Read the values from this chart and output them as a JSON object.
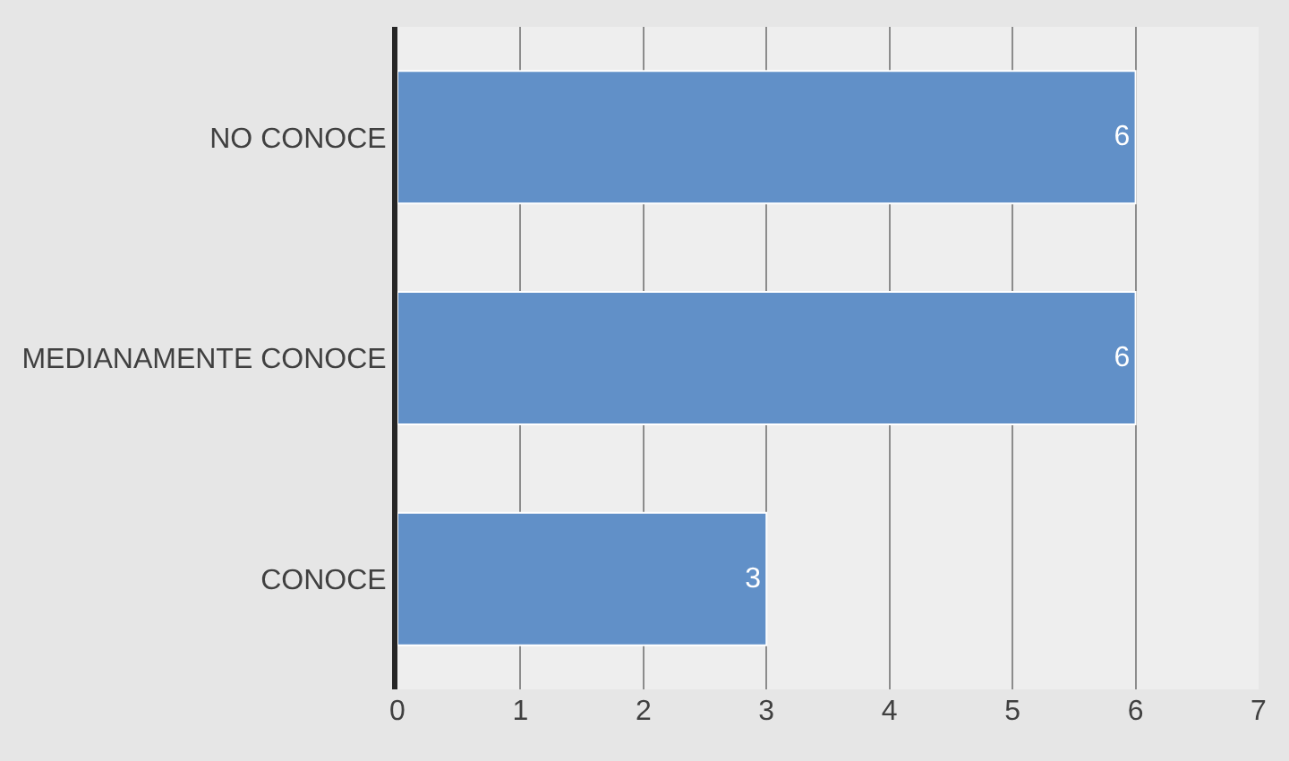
{
  "chart_data": {
    "type": "bar",
    "orientation": "horizontal",
    "categories": [
      "NO CONOCE",
      "MEDIANAMENTE CONOCE",
      "CONOCE"
    ],
    "values": [
      6,
      6,
      3
    ],
    "color": "#6190c8",
    "xlim": [
      0,
      7
    ],
    "xticks": [
      0,
      1,
      2,
      3,
      4,
      5,
      6,
      7
    ],
    "grid": "x",
    "data_labels": true,
    "legend": false
  }
}
